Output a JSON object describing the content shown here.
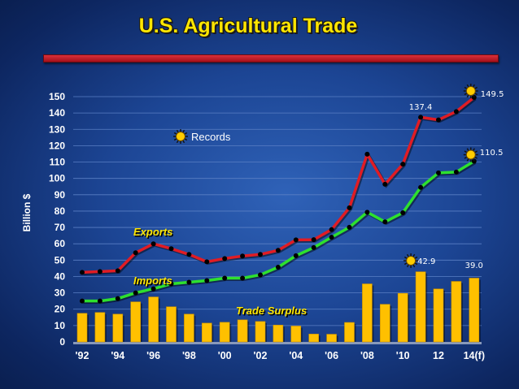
{
  "title": "U.S. Agricultural Trade",
  "colors": {
    "exports": "#e01c24",
    "imports": "#2ee02e",
    "surplus": "#ffc000",
    "title": "#ffe600",
    "grid": "#5a7fc4"
  },
  "chart_data": {
    "type": "bar+line",
    "title": "U.S. Agricultural Trade",
    "ylabel": "Billion $",
    "xlabel": "",
    "ylim": [
      0,
      150
    ],
    "yticks": [
      0,
      10,
      20,
      30,
      40,
      50,
      60,
      70,
      80,
      90,
      100,
      110,
      120,
      130,
      140,
      150
    ],
    "x": [
      1992,
      1993,
      1994,
      1995,
      1996,
      1997,
      1998,
      1999,
      2000,
      2001,
      2002,
      2003,
      2004,
      2005,
      2006,
      2007,
      2008,
      2009,
      2010,
      2011,
      2012,
      2013,
      2014
    ],
    "xtick_labels": [
      {
        "x": 1992,
        "label": "'92"
      },
      {
        "x": 1994,
        "label": "'94"
      },
      {
        "x": 1996,
        "label": "'96"
      },
      {
        "x": 1998,
        "label": "'98"
      },
      {
        "x": 2000,
        "label": "'00"
      },
      {
        "x": 2002,
        "label": "'02"
      },
      {
        "x": 2004,
        "label": "'04"
      },
      {
        "x": 2006,
        "label": "'06"
      },
      {
        "x": 2008,
        "label": "'08"
      },
      {
        "x": 2010,
        "label": "'10"
      },
      {
        "x": 2012,
        "label": "12"
      },
      {
        "x": 2014,
        "label": "14(f)"
      }
    ],
    "series": [
      {
        "name": "Exports",
        "kind": "line",
        "values": [
          42.5,
          43,
          43.5,
          54.5,
          60,
          57,
          53.5,
          49,
          51,
          52.5,
          53.5,
          56,
          62.4,
          62.5,
          68.7,
          82,
          114.8,
          96.4,
          108.7,
          137.4,
          135.8,
          140.9,
          149.5
        ]
      },
      {
        "name": "Imports",
        "kind": "line",
        "values": [
          25,
          25,
          26.5,
          30,
          32.5,
          35.5,
          36.5,
          37.5,
          39,
          39,
          41,
          45.7,
          52.7,
          57.7,
          64,
          70.1,
          79.3,
          73.4,
          79,
          94.5,
          103.4,
          103.9,
          110.5
        ]
      },
      {
        "name": "Trade Surplus",
        "kind": "bar",
        "values": [
          17.5,
          18,
          17,
          24.5,
          27.5,
          21.5,
          17,
          11.5,
          12,
          13.5,
          12.5,
          10.3,
          9.7,
          4.8,
          4.7,
          11.9,
          35.5,
          23,
          29.7,
          42.9,
          32.4,
          37,
          39
        ]
      }
    ],
    "data_labels": [
      {
        "series": "Exports",
        "x": 2011,
        "label": "137.4"
      },
      {
        "series": "Exports",
        "x": 2014,
        "label": "149.5"
      },
      {
        "series": "Imports",
        "x": 2014,
        "label": "110.5"
      },
      {
        "series": "Trade Surplus",
        "x": 2011,
        "label": "42.9"
      },
      {
        "series": "Trade Surplus",
        "x": 2014,
        "label": "39.0"
      }
    ],
    "record_markers": [
      {
        "series": "Exports",
        "x": 2014
      },
      {
        "series": "Imports",
        "x": 2014
      },
      {
        "series": "Trade Surplus",
        "x": 2011
      }
    ],
    "legend": {
      "label": "Records",
      "icon": "sun-icon",
      "placement": "top-center"
    },
    "series_labels": [
      "Exports",
      "Imports",
      "Trade Surplus"
    ],
    "grid": true
  }
}
